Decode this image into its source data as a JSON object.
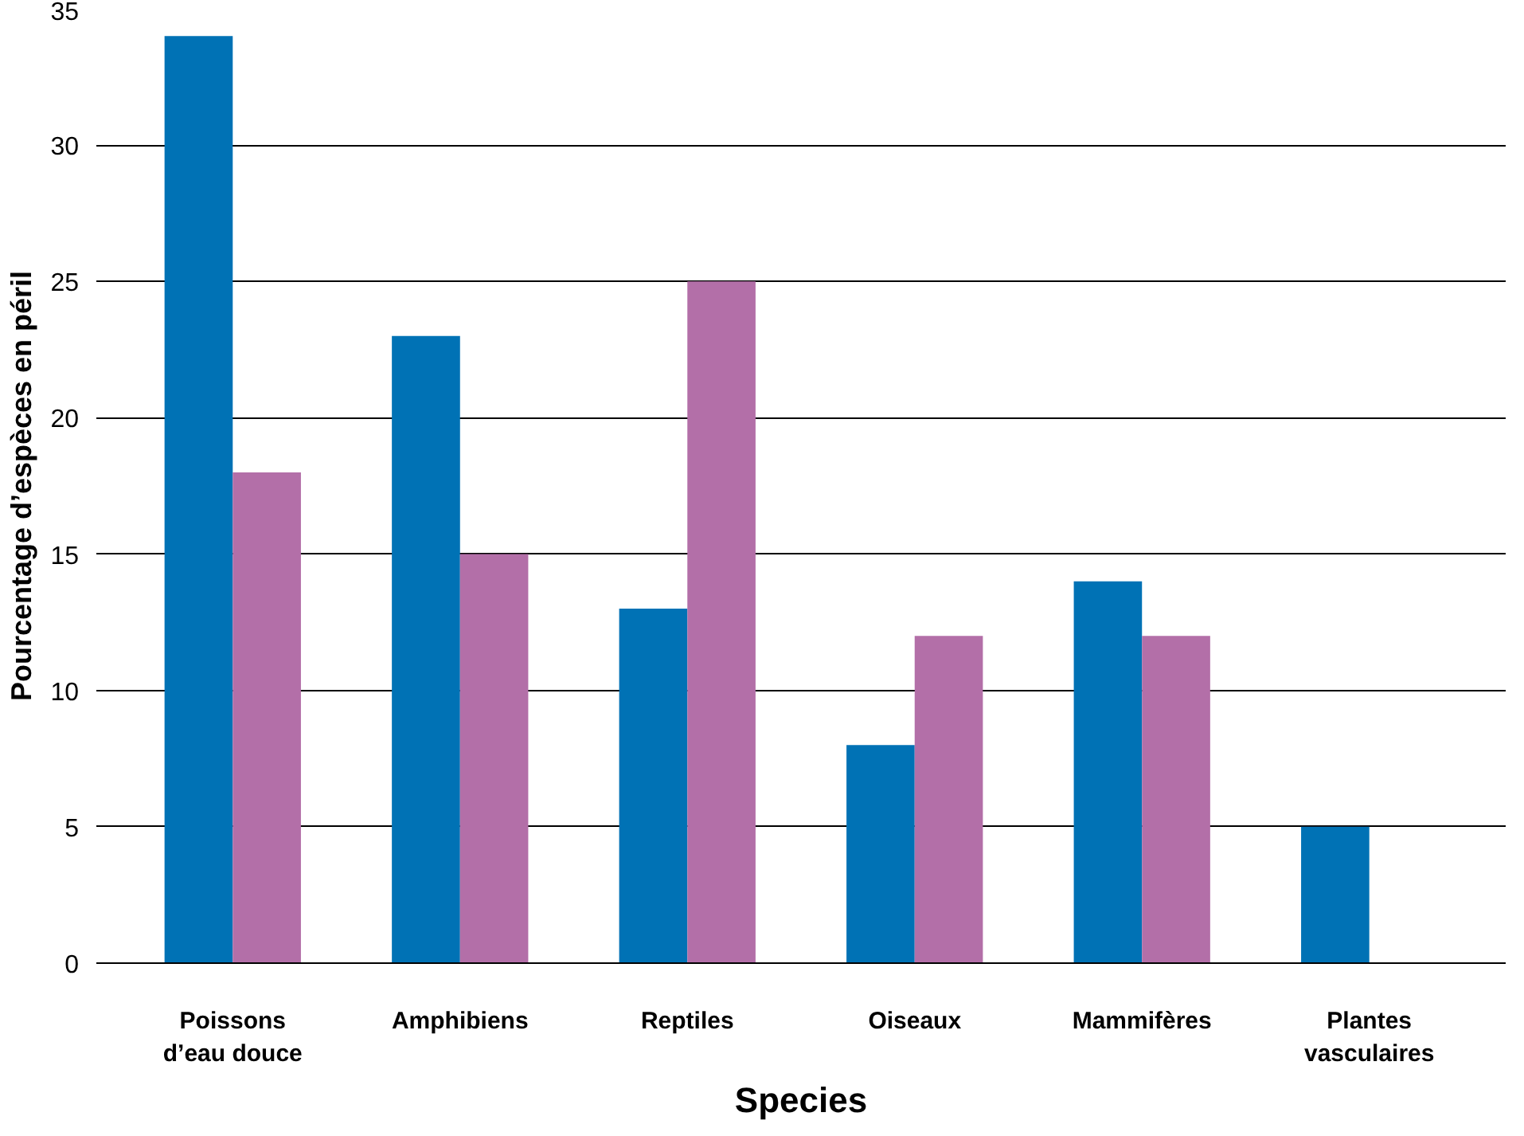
{
  "chart_data": {
    "type": "bar",
    "xlabel": "Species",
    "ylabel": "Pourcentage d’espèces en péril",
    "categories": [
      "Poissons\nd’eau douce",
      "Amphibiens",
      "Reptiles",
      "Oiseaux",
      "Mammifères",
      "Plantes\nvasculaires"
    ],
    "series": [
      {
        "color": "#0072b5",
        "values": [
          34,
          23,
          13,
          8,
          14,
          5
        ]
      },
      {
        "color": "#b36fa8",
        "values": [
          18,
          15,
          25,
          12,
          12,
          null
        ]
      }
    ],
    "ylim": [
      0,
      35
    ],
    "yticks": [
      0,
      5,
      10,
      15,
      20,
      25,
      30,
      35
    ],
    "grid": "y"
  }
}
